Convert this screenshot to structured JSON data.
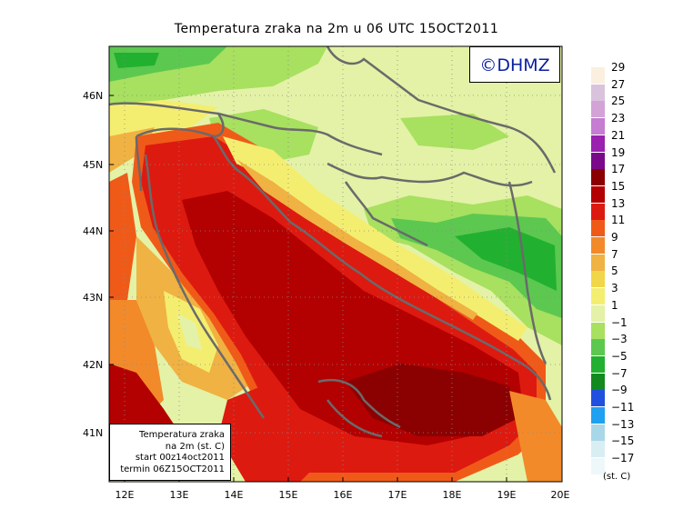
{
  "title": "Temperatura zraka na 2m u 06 UTC 15OCT2011",
  "copyright": "©DHMZ",
  "info": {
    "line1": "Temperatura zraka",
    "line2": "na 2m (st. C)",
    "line3": "start 00z14oct2011",
    "line4": "termin 06Z15OCT2011"
  },
  "lat_labels": [
    "46N",
    "45N",
    "44N",
    "43N",
    "42N",
    "41N"
  ],
  "lon_labels": [
    "12E",
    "13E",
    "14E",
    "15E",
    "16E",
    "17E",
    "18E",
    "19E",
    "20E"
  ],
  "legend": {
    "unit": "(st. C)",
    "labels": [
      "29",
      "27",
      "25",
      "23",
      "21",
      "19",
      "17",
      "15",
      "13",
      "11",
      "9",
      "7",
      "5",
      "3",
      "1",
      "−1",
      "−3",
      "−5",
      "−7",
      "−9",
      "−11",
      "−13",
      "−15",
      "−17"
    ],
    "colors": [
      "#fbefe0",
      "#d9c3dc",
      "#d3a3d8",
      "#c57cd1",
      "#9a20b0",
      "#7a0a8a",
      "#8b0000",
      "#b30000",
      "#dd1a10",
      "#f05a18",
      "#f28a2a",
      "#f0b242",
      "#f2d64a",
      "#f4ee70",
      "#e3f2a6",
      "#a8e060",
      "#5cc850",
      "#22b030",
      "#138a1e",
      "#2050e0",
      "#20a0f0",
      "#a8d8e8",
      "#d8eef2",
      "#eef8fa"
    ]
  },
  "map": {
    "type": "temperature-field",
    "extent": {
      "lon_min": 11.8,
      "lon_max": 20.0,
      "lat_min": 40.3,
      "lat_max": 46.8
    }
  }
}
